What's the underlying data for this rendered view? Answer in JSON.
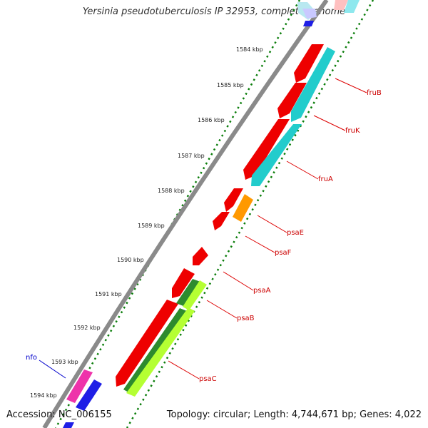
{
  "title": "Yersinia pseudotuberculosis IP 32953, complete genome",
  "footer": {
    "accession": "Accession: NC_006155",
    "stats": "Topology: circular; Length: 4,744,671 bp; Genes: 4,022"
  },
  "colors": {
    "backbone": "#8c8c8c",
    "tick": "#0a7d0a",
    "label_gene": "#cc0000",
    "label_blue": "#0000cc"
  },
  "kbp_labels": [
    "1584 kbp",
    "1585 kbp",
    "1586 kbp",
    "1587 kbp",
    "1588 kbp",
    "1589 kbp",
    "1590 kbp",
    "1591 kbp",
    "1592 kbp",
    "1593 kbp",
    "1594 kbp"
  ],
  "gene_labels": [
    {
      "name": "fruB",
      "color": "#cc0000"
    },
    {
      "name": "fruK",
      "color": "#cc0000"
    },
    {
      "name": "fruA",
      "color": "#cc0000"
    },
    {
      "name": "psaE",
      "color": "#cc0000"
    },
    {
      "name": "psaF",
      "color": "#cc0000"
    },
    {
      "name": "psaA",
      "color": "#cc0000"
    },
    {
      "name": "psaB",
      "color": "#cc0000"
    },
    {
      "name": "psaC",
      "color": "#cc0000"
    },
    {
      "name": "nfo",
      "color": "#0000cc"
    }
  ]
}
